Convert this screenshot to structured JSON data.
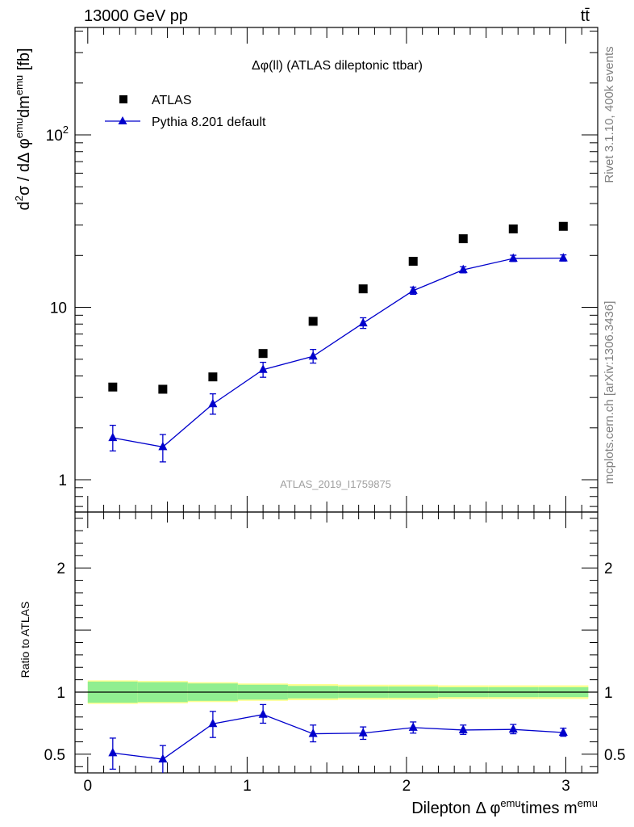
{
  "header": {
    "energy_label": "13000 GeV pp",
    "process_label": "tt̄"
  },
  "watermark": "ATLAS_2019_I1759875",
  "side": {
    "rivet_label": "Rivet 3.1.10,  400k events",
    "source_label": "mcplots.cern.ch [arXiv:1306.3436]"
  },
  "colors": {
    "atlas": "#000000",
    "pythia": "#0000cc",
    "band_inner": "#90ee90",
    "band_outer": "#ffff90",
    "watermark": "#a0a0a0",
    "side_text": "#808080"
  },
  "chart_data": [
    {
      "type": "scatter",
      "title": "Δφ(ll) (ATLAS dileptonic ttbar)",
      "ylabel": "d²σ / dΔφ^emu dm^emu [fb]",
      "yscale": "log",
      "ylim": [
        0.65,
        420
      ],
      "xlim": [
        -0.08,
        3.2
      ],
      "y_tick_labels": [
        "1",
        "10",
        "10²"
      ],
      "legend_placement": "top-left",
      "x": [
        0.157,
        0.471,
        0.785,
        1.1,
        1.414,
        1.728,
        2.042,
        2.356,
        2.67,
        2.984
      ],
      "series": [
        {
          "name": "ATLAS",
          "marker": "square",
          "values": [
            3.45,
            3.35,
            3.95,
            5.4,
            8.3,
            12.8,
            18.5,
            25.0,
            28.5,
            29.5
          ]
        },
        {
          "name": "Pythia 8.201 default",
          "marker": "triangle",
          "line": true,
          "values": [
            1.75,
            1.55,
            2.75,
            4.35,
            5.2,
            8.1,
            12.5,
            16.5,
            19.2,
            19.3
          ],
          "err_low": [
            0.28,
            0.28,
            0.35,
            0.42,
            0.45,
            0.55,
            0.6,
            0.65,
            0.75,
            0.75
          ],
          "err_high": [
            0.32,
            0.28,
            0.4,
            0.45,
            0.5,
            0.6,
            0.6,
            0.7,
            0.85,
            0.85
          ]
        }
      ]
    },
    {
      "type": "line",
      "ylabel": "Ratio to ATLAS",
      "xlabel": "Dilepton Δ φ^emu times m^emu",
      "ylim": [
        0.35,
        2.45
      ],
      "xlim": [
        -0.08,
        3.2
      ],
      "y_tick_labels": [
        "0.5",
        "1",
        "2"
      ],
      "x_tick_labels": [
        "0",
        "1",
        "2",
        "3"
      ],
      "x": [
        0.157,
        0.471,
        0.785,
        1.1,
        1.414,
        1.728,
        2.042,
        2.356,
        2.67,
        2.984
      ],
      "band_edges": [
        0.0,
        0.314,
        0.628,
        0.942,
        1.256,
        1.571,
        1.885,
        2.199,
        2.513,
        2.827,
        3.141
      ],
      "band_inner": [
        0.085,
        0.08,
        0.07,
        0.06,
        0.05,
        0.045,
        0.045,
        0.04,
        0.04,
        0.04
      ],
      "band_outer": [
        0.095,
        0.09,
        0.08,
        0.07,
        0.065,
        0.06,
        0.06,
        0.055,
        0.055,
        0.055
      ],
      "reference": 1,
      "series": [
        {
          "name": "Pythia 8.201 default",
          "marker": "triangle",
          "values": [
            0.51,
            0.46,
            0.745,
            0.82,
            0.665,
            0.67,
            0.715,
            0.695,
            0.7,
            0.675
          ],
          "err_low": [
            0.13,
            0.13,
            0.11,
            0.07,
            0.065,
            0.05,
            0.045,
            0.035,
            0.035,
            0.03
          ],
          "err_high": [
            0.12,
            0.11,
            0.1,
            0.08,
            0.07,
            0.05,
            0.045,
            0.04,
            0.04,
            0.035
          ]
        }
      ]
    }
  ]
}
